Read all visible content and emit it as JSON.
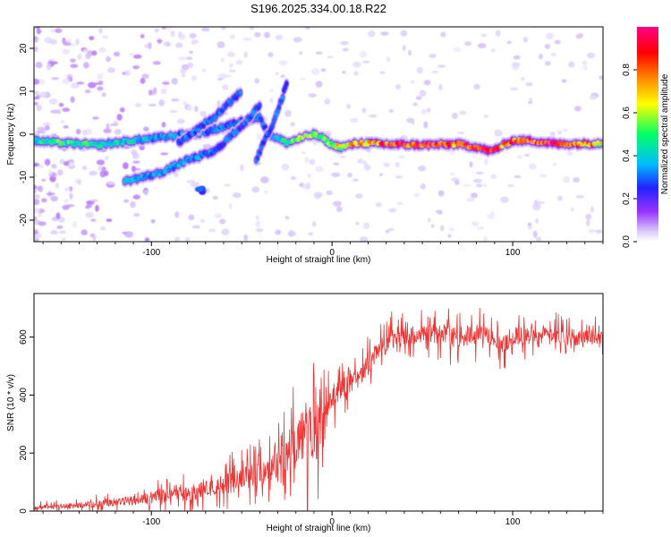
{
  "title": "S196.2025.334.00.18.R22",
  "chart_data": [
    {
      "type": "heatmap",
      "xlabel": "Height of straight line (km)",
      "ylabel": "Frequency (Hz)",
      "xlim": [
        -165,
        150
      ],
      "ylim": [
        -25,
        25
      ],
      "xticks": [
        -100,
        0,
        100
      ],
      "yticks": [
        -20,
        -10,
        0,
        10,
        20
      ],
      "colorbar": {
        "label": "Normalized spectral amplitude",
        "range": [
          0,
          1
        ],
        "ticks": [
          "0.0",
          "0.2",
          "0.4",
          "0.6",
          "0.8"
        ],
        "colors": [
          "#ffffff",
          "#d8c8f8",
          "#9933ff",
          "#2222ff",
          "#00bbff",
          "#00ff66",
          "#ffff00",
          "#ff8800",
          "#ff0000",
          "#ff0088"
        ]
      },
      "ridges": [
        {
          "name": "main-carrier",
          "points": [
            [
              -165,
              -1.5,
              0.45
            ],
            [
              -150,
              -2,
              0.5
            ],
            [
              -130,
              -2.5,
              0.45
            ],
            [
              -110,
              -1.5,
              0.4
            ],
            [
              -90,
              -0.5,
              0.35
            ],
            [
              -70,
              0.5,
              0.3
            ],
            [
              -50,
              3,
              0.3
            ],
            [
              -40,
              4,
              0.3
            ],
            [
              -35,
              0,
              0.35
            ],
            [
              -25,
              -2,
              0.5
            ],
            [
              -18,
              -1,
              0.55
            ],
            [
              -10,
              0,
              0.6
            ],
            [
              -5,
              -1,
              0.55
            ],
            [
              0,
              -2.5,
              0.6
            ],
            [
              5,
              -3,
              0.65
            ],
            [
              15,
              -2,
              0.75
            ],
            [
              30,
              -2.3,
              0.85
            ],
            [
              50,
              -2.5,
              0.9
            ],
            [
              70,
              -2.3,
              0.85
            ],
            [
              80,
              -3,
              0.9
            ],
            [
              88,
              -4,
              0.85
            ],
            [
              95,
              -2.5,
              0.8
            ],
            [
              100,
              -1.5,
              0.8
            ],
            [
              110,
              -1.5,
              0.85
            ],
            [
              125,
              -2.3,
              0.9
            ],
            [
              140,
              -2.2,
              0.8
            ],
            [
              150,
              -2,
              0.6
            ]
          ]
        },
        {
          "name": "rising-branch-lower",
          "points": [
            [
              -115,
              -11,
              0.4
            ],
            [
              -95,
              -9,
              0.35
            ],
            [
              -80,
              -6,
              0.35
            ],
            [
              -65,
              -4,
              0.3
            ],
            [
              -55,
              0,
              0.3
            ],
            [
              -45,
              4,
              0.3
            ],
            [
              -40,
              7,
              0.3
            ]
          ]
        },
        {
          "name": "rising-branch-upper",
          "points": [
            [
              -85,
              -2,
              0.3
            ],
            [
              -75,
              1,
              0.3
            ],
            [
              -65,
              4,
              0.3
            ],
            [
              -55,
              8,
              0.3
            ],
            [
              -50,
              10,
              0.3
            ]
          ]
        },
        {
          "name": "late-branch",
          "points": [
            [
              -42,
              -6,
              0.3
            ],
            [
              -38,
              -2,
              0.3
            ],
            [
              -33,
              2,
              0.3
            ],
            [
              -28,
              8,
              0.3
            ],
            [
              -25,
              12,
              0.25
            ]
          ]
        },
        {
          "name": "isolated-blob",
          "points": [
            [
              -72,
              -13,
              0.3
            ]
          ]
        }
      ]
    },
    {
      "type": "line",
      "xlabel": "Height of straight line (km)",
      "ylabel": "SNR (10 * v/v)",
      "xlim": [
        -165,
        150
      ],
      "ylim": [
        0,
        750
      ],
      "xticks": [
        -100,
        0,
        100
      ],
      "yticks": [
        0,
        200,
        400,
        600
      ],
      "color": "#ee3333",
      "envelope": {
        "x": [
          -165,
          -140,
          -120,
          -100,
          -80,
          -60,
          -40,
          -30,
          -20,
          -15,
          -10,
          -5,
          0,
          5,
          10,
          15,
          20,
          25,
          35,
          50,
          60,
          70,
          80,
          90,
          94,
          98,
          110,
          130,
          150
        ],
        "mean": [
          10,
          20,
          30,
          45,
          60,
          90,
          130,
          170,
          230,
          280,
          240,
          320,
          380,
          420,
          440,
          460,
          500,
          550,
          600,
          610,
          605,
          600,
          610,
          600,
          560,
          600,
          605,
          600,
          600
        ],
        "spread": [
          15,
          20,
          25,
          40,
          50,
          70,
          90,
          110,
          170,
          200,
          220,
          120,
          80,
          70,
          70,
          70,
          80,
          70,
          70,
          60,
          70,
          70,
          70,
          60,
          80,
          70,
          60,
          60,
          50
        ]
      }
    }
  ]
}
